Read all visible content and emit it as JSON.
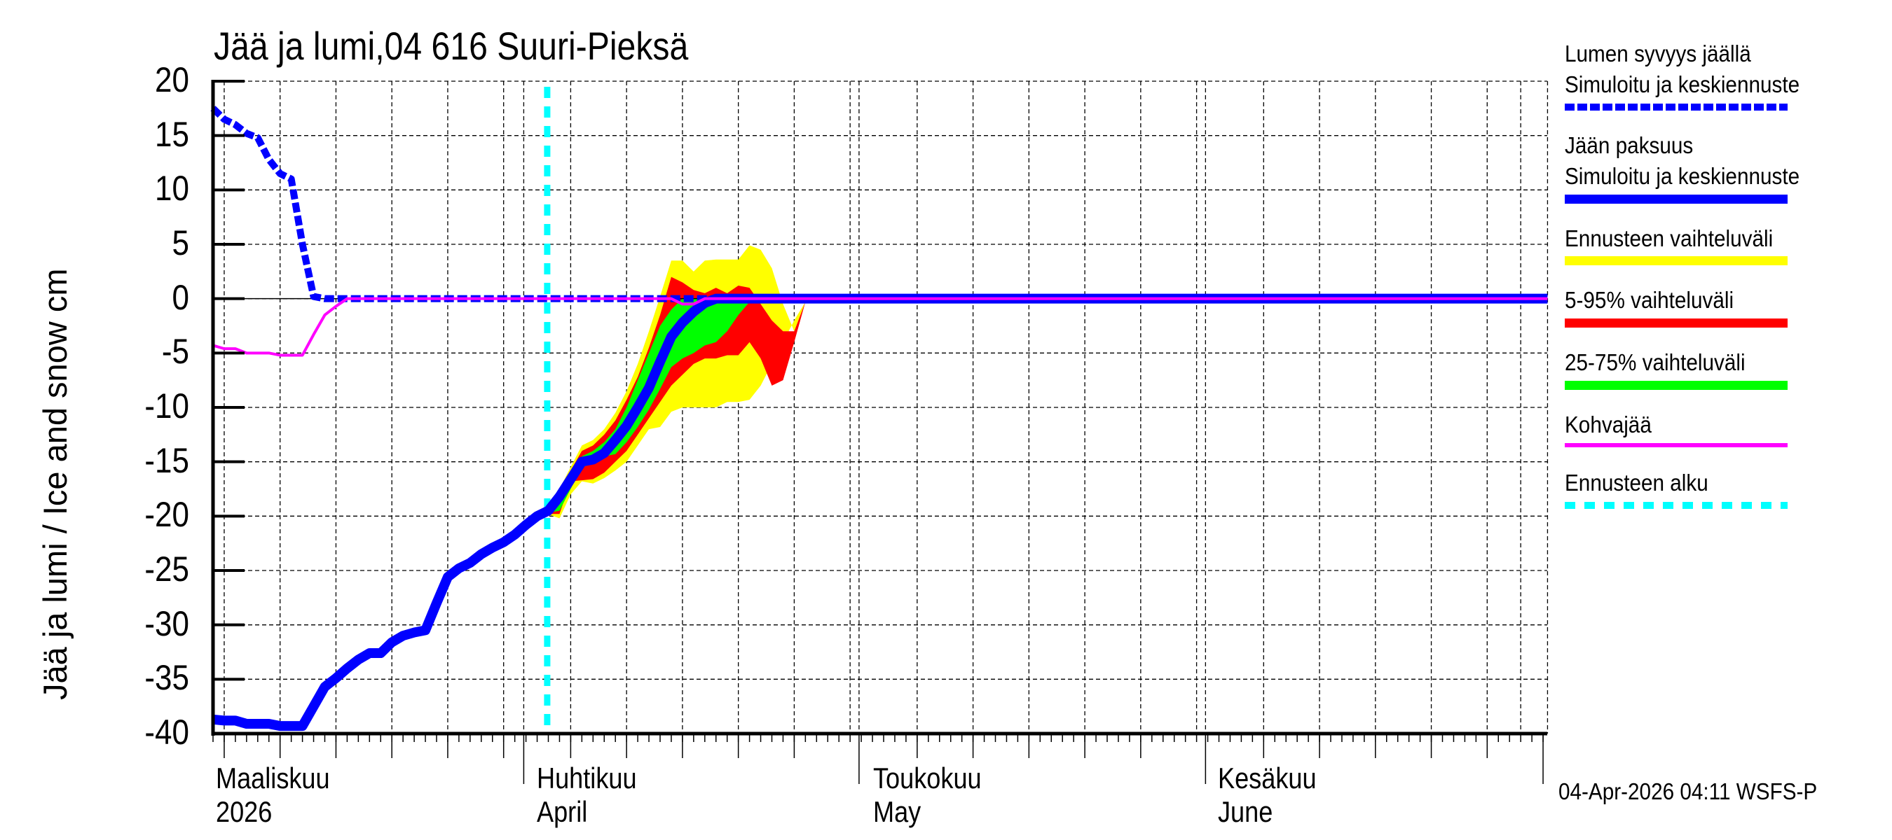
{
  "title": "Jää ja lumi,04 616 Suuri-Pieksä",
  "y_axis_label": "Jää ja lumi / Ice and snow    cm",
  "y_ticks": [
    "20",
    "15",
    "10",
    "5",
    "0",
    "-5",
    "-10",
    "-15",
    "-20",
    "-25",
    "-30",
    "-35",
    "-40"
  ],
  "x_months": [
    {
      "fi": "Maaliskuu",
      "en": "2026",
      "x": 308
    },
    {
      "fi": "Huhtikuu",
      "en": "April",
      "x": 766
    },
    {
      "fi": "Toukokuu",
      "en": "May",
      "x": 1246
    },
    {
      "fi": "Kesäkuu",
      "en": "June",
      "x": 1738
    }
  ],
  "legend": [
    {
      "line1": "Lumen syvyys jäällä",
      "line2": "Simuloitu ja keskiennuste",
      "color": "#0000ff",
      "style": "dashed-thick"
    },
    {
      "line1": "Jään paksuus",
      "line2": "Simuloitu ja keskiennuste",
      "color": "#0000ff",
      "style": "solid-thick"
    },
    {
      "line1": "Ennusteen vaihteluväli",
      "line2": "",
      "color": "#ffff00",
      "style": "solid-thick"
    },
    {
      "line1": "5-95% vaihteluväli",
      "line2": "",
      "color": "#ff0000",
      "style": "solid-thick"
    },
    {
      "line1": "25-75% vaihteluväli",
      "line2": "",
      "color": "#00ff00",
      "style": "solid-thick"
    },
    {
      "line1": "Kohvajää",
      "line2": "",
      "color": "#ff00ff",
      "style": "solid-thin"
    },
    {
      "line1": "Ennusteen alku",
      "line2": "",
      "color": "#00ffff",
      "style": "dotted-thick"
    }
  ],
  "footer": "04-Apr-2026 04:11 WSFS-P",
  "chart_data": {
    "type": "line",
    "title": "Jää ja lumi,04 616 Suuri-Pieksä",
    "xlabel": "",
    "ylabel": "Jää ja lumi / Ice and snow cm",
    "ylim": [
      -40,
      20
    ],
    "yticks": [
      20,
      15,
      10,
      5,
      0,
      -5,
      -10,
      -15,
      -20,
      -25,
      -30,
      -35,
      -40
    ],
    "x_unit": "days from axis start (~3 Mar 2026); Apr 1 ≈ day 27.8, May 1 ≈ day 57.8, Jun 1 ≈ day 88.8, Jul 1 ≈ day 119",
    "xlim": [
      0,
      119.4
    ],
    "grid": true,
    "legend_position": "right",
    "forecast_start_day": 29.9,
    "forecast_start_date": "2026-04-03",
    "series": [
      {
        "name": "Lumen syvyys jäällä (Simuloitu ja keskiennuste)",
        "color": "#0000ff",
        "style": "dashed",
        "x": [
          0,
          1,
          2,
          3,
          4,
          5,
          6,
          7,
          8,
          9,
          10,
          11,
          12,
          119.4
        ],
        "y": [
          17.5,
          16.5,
          16.0,
          15.2,
          14.8,
          12.8,
          11.5,
          11.0,
          5.0,
          0.2,
          0,
          0,
          0,
          0
        ]
      },
      {
        "name": "Jään paksuus (Simuloitu ja keskiennuste)",
        "color": "#0000ff",
        "style": "solid",
        "x": [
          0,
          1,
          2,
          3,
          4,
          5,
          6,
          7,
          8,
          9,
          10,
          11,
          12,
          13,
          14,
          15,
          16,
          17,
          18,
          19,
          20,
          21,
          22,
          23,
          24,
          25,
          26,
          27,
          28,
          29,
          30,
          31,
          32,
          33,
          34,
          35,
          36,
          37,
          38,
          39,
          40,
          41,
          42,
          43,
          44,
          45,
          46,
          47,
          119.4
        ],
        "y": [
          -38.7,
          -38.8,
          -38.8,
          -39.1,
          -39.1,
          -39.1,
          -39.3,
          -39.3,
          -39.3,
          -37.5,
          -35.7,
          -34.9,
          -34.0,
          -33.2,
          -32.6,
          -32.6,
          -31.6,
          -31.0,
          -30.7,
          -30.5,
          -28.0,
          -25.6,
          -24.8,
          -24.3,
          -23.5,
          -22.9,
          -22.4,
          -21.7,
          -20.8,
          -20.0,
          -19.5,
          -18.2,
          -16.6,
          -15.0,
          -14.8,
          -14.2,
          -13.0,
          -11.7,
          -10.0,
          -8.2,
          -5.8,
          -3.5,
          -2.2,
          -1.2,
          -0.4,
          0,
          0,
          0,
          0
        ]
      },
      {
        "name": "Kohvajää",
        "color": "#ff00ff",
        "style": "solid",
        "x": [
          0,
          1,
          2,
          3,
          4,
          5,
          6,
          7,
          8,
          9,
          10,
          11,
          12,
          40,
          41,
          42,
          43,
          44,
          119.4
        ],
        "y": [
          -4.3,
          -4.6,
          -4.6,
          -5.0,
          -5.0,
          -5.0,
          -5.2,
          -5.2,
          -5.2,
          -3.3,
          -1.5,
          -0.7,
          0,
          0,
          0,
          -0.5,
          -0.5,
          0,
          0
        ]
      }
    ],
    "bands": [
      {
        "name": "Ennusteen vaihteluväli",
        "color": "#ffff00",
        "x": [
          29.9,
          31,
          32,
          33,
          34,
          35,
          36,
          37,
          38,
          39,
          40,
          41,
          42,
          43,
          44,
          45,
          46,
          47,
          48,
          49,
          50,
          51,
          52,
          53
        ],
        "upper": [
          -19.2,
          -17.5,
          -15.5,
          -13.5,
          -13.0,
          -12.0,
          -10.5,
          -8.5,
          -6.0,
          -3.0,
          0.2,
          3.5,
          3.5,
          2.5,
          3.5,
          3.6,
          3.6,
          3.6,
          4.9,
          4.5,
          2.8,
          -0.5,
          -3.0,
          -0.3
        ],
        "lower": [
          -19.8,
          -20.2,
          -18.0,
          -16.8,
          -17.0,
          -16.5,
          -15.8,
          -15.0,
          -13.5,
          -12.0,
          -11.8,
          -10.4,
          -10.0,
          -10.0,
          -10.0,
          -10.0,
          -9.5,
          -9.5,
          -9.3,
          -8.0,
          -6.0,
          -4.0,
          -2.0,
          -0.3
        ]
      },
      {
        "name": "5-95% vaihteluväli",
        "color": "#ff0000",
        "x": [
          29.9,
          31,
          32,
          33,
          34,
          35,
          36,
          37,
          38,
          39,
          40,
          41,
          42,
          43,
          44,
          45,
          46,
          47,
          48,
          49,
          50,
          51,
          52,
          53
        ],
        "upper": [
          -19.5,
          -17.8,
          -15.8,
          -14.0,
          -13.5,
          -12.5,
          -11.2,
          -9.3,
          -7.2,
          -4.5,
          -1.5,
          2.0,
          1.5,
          0.8,
          0.5,
          1.0,
          0.5,
          1.2,
          1.0,
          -0.5,
          -2.0,
          -3.0,
          -3.0,
          -0.3
        ],
        "lower": [
          -19.8,
          -19.8,
          -16.8,
          -16.7,
          -16.6,
          -16.0,
          -15.0,
          -14.0,
          -12.5,
          -11.0,
          -9.5,
          -8.0,
          -7.0,
          -6.0,
          -5.5,
          -5.5,
          -5.2,
          -5.2,
          -4.0,
          -5.5,
          -8.0,
          -7.5,
          -4.0,
          -0.3
        ]
      },
      {
        "name": "25-75% vaihteluväli",
        "color": "#00ff00",
        "x": [
          29.9,
          31,
          32,
          33,
          34,
          35,
          36,
          37,
          38,
          39,
          40,
          41,
          42,
          43,
          44,
          45,
          46,
          47,
          48,
          49
        ],
        "upper": [
          -19.6,
          -18.0,
          -16.2,
          -14.5,
          -14.0,
          -13.2,
          -12.0,
          -10.0,
          -7.5,
          -5.0,
          -2.5,
          -1.0,
          0,
          0,
          0,
          0,
          0,
          0,
          0,
          0
        ],
        "lower": [
          -19.7,
          -19.5,
          -17.5,
          -15.5,
          -15.2,
          -14.5,
          -14.3,
          -13.2,
          -11.8,
          -10.2,
          -8.3,
          -6.3,
          -5.5,
          -5.0,
          -4.3,
          -4.0,
          -3.0,
          -1.5,
          -0.3,
          0
        ]
      }
    ]
  }
}
